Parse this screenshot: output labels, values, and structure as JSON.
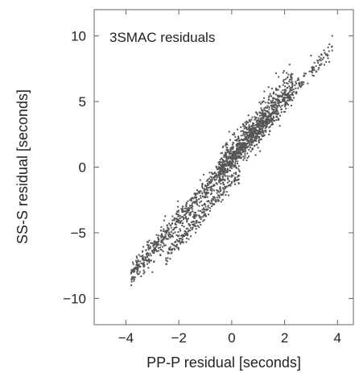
{
  "chart_data": {
    "type": "scatter",
    "title": "3SMAC residuals",
    "xlabel": "PP-P residual [seconds]",
    "ylabel": "SS-S residual [seconds]",
    "xlim": [
      -5.2,
      4.6
    ],
    "ylim": [
      -12,
      12
    ],
    "xticks": [
      -4,
      -2,
      0,
      2,
      4
    ],
    "yticks": [
      -10,
      -5,
      0,
      5,
      10
    ],
    "xtick_labels": [
      "−4",
      "−2",
      "0",
      "2",
      "4"
    ],
    "ytick_labels": [
      "−10",
      "−5",
      "0",
      "5",
      "10"
    ],
    "grid": false,
    "marker_color": "#555555",
    "bands": [
      {
        "x_start": -3.8,
        "x_end": 1.8,
        "slope": 2.25,
        "intercept": 0.5,
        "spread": 0.45,
        "n": 900
      },
      {
        "x_start": -0.5,
        "x_end": 2.3,
        "slope": 2.3,
        "intercept": 0.9,
        "spread": 0.7,
        "n": 700
      },
      {
        "x_start": -2.5,
        "x_end": 0.3,
        "slope": 2.25,
        "intercept": -1.1,
        "spread": 0.35,
        "n": 260
      },
      {
        "x_start": 2.0,
        "x_end": 3.8,
        "slope": 2.2,
        "intercept": 0.6,
        "spread": 0.35,
        "n": 110
      }
    ],
    "points": [
      {
        "x": 3.8,
        "y": 10.0
      },
      {
        "x": 3.0,
        "y": 8.5
      },
      {
        "x": 3.5,
        "y": 7.8
      },
      {
        "x": -3.8,
        "y": -9.0
      },
      {
        "x": -3.0,
        "y": -8.0
      }
    ]
  }
}
